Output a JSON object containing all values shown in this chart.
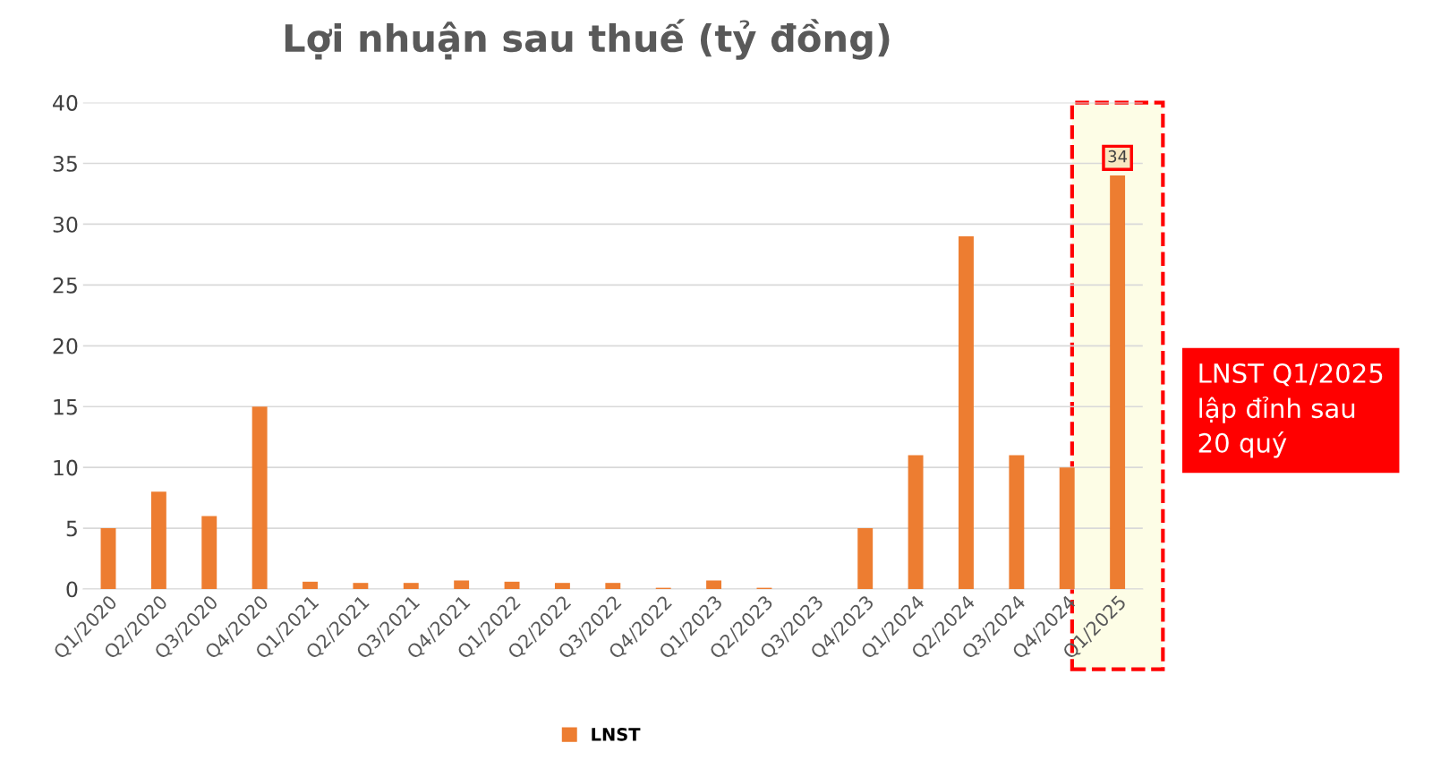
{
  "chart_data": {
    "type": "bar",
    "title": "Lợi nhuận sau thuế (tỷ đồng)",
    "categories": [
      "Q1/2020",
      "Q2/2020",
      "Q3/2020",
      "Q4/2020",
      "Q1/2021",
      "Q2/2021",
      "Q3/2021",
      "Q4/2021",
      "Q1/2022",
      "Q2/2022",
      "Q3/2022",
      "Q4/2022",
      "Q1/2023",
      "Q2/2023",
      "Q3/2023",
      "Q4/2023",
      "Q1/2024",
      "Q2/2024",
      "Q3/2024",
      "Q4/2024",
      "Q1/2025"
    ],
    "series": [
      {
        "name": "LNST",
        "color": "#ed7d31",
        "values": [
          5,
          8,
          6,
          15,
          0.6,
          0.5,
          0.5,
          0.7,
          0.6,
          0.5,
          0.5,
          0.1,
          0.7,
          0.1,
          0,
          5,
          11,
          29,
          11,
          10,
          34
        ],
        "value_labels": [
          null,
          null,
          null,
          null,
          null,
          null,
          null,
          null,
          null,
          null,
          null,
          null,
          null,
          null,
          null,
          null,
          null,
          null,
          null,
          null,
          "34"
        ]
      }
    ],
    "ylim": [
      0,
      40
    ],
    "yticks": [
      0,
      5,
      10,
      15,
      20,
      25,
      30,
      35,
      40
    ],
    "grid": "y",
    "legend": "bottom",
    "annotations": [
      "LNST Q1/2025\nlập đỉnh sau\n20 quý"
    ]
  }
}
